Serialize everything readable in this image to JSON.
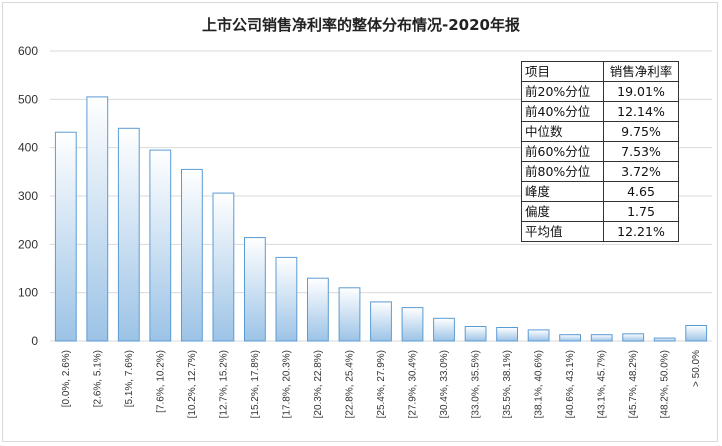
{
  "chart_data": {
    "type": "bar",
    "title": "上市公司销售净利率的整体分布情况-2020年报",
    "xlabel": "",
    "ylabel": "",
    "ylim": [
      0,
      600
    ],
    "yticks": [
      "0",
      "100",
      "200",
      "300",
      "400",
      "500",
      "600"
    ],
    "grid": true,
    "categories": [
      "[0.0%, 2.6%)",
      "[2.6%, 5.1%)",
      "[5.1%, 7.6%)",
      "[7.6%, 10.2%)",
      "[10.2%, 12.7%)",
      "[12.7%, 15.2%)",
      "[15.2%, 17.8%)",
      "[17.8%, 20.3%)",
      "[20.3%, 22.8%)",
      "[22.8%, 25.4%)",
      "[25.4%, 27.9%)",
      "[27.9%, 30.4%)",
      "[30.4%, 33.0%)",
      "[33.0%, 35.5%)",
      "[35.5%, 38.1%)",
      "[38.1%, 40.6%)",
      "[40.6%, 43.1%)",
      "[43.1%, 45.7%)",
      "[45.7%, 48.2%)",
      "[48.2%, 50.0%)",
      "> 50.0%"
    ],
    "values": [
      432,
      505,
      440,
      395,
      355,
      306,
      214,
      173,
      130,
      110,
      81,
      69,
      47,
      30,
      28,
      23,
      13,
      13,
      15,
      6,
      32
    ],
    "colors": {
      "bar_top": "#ffffff",
      "bar_bottom": "#9cc3e6",
      "bar_edge": "#5b9bd5"
    },
    "table": {
      "header": [
        "项目",
        "销售净利率"
      ],
      "rows": [
        [
          "前20%分位",
          "19.01%"
        ],
        [
          "前40%分位",
          "12.14%"
        ],
        [
          "中位数",
          "9.75%"
        ],
        [
          "前60%分位",
          "7.53%"
        ],
        [
          "前80%分位",
          "3.72%"
        ],
        [
          "峰度",
          "4.65"
        ],
        [
          "偏度",
          "1.75"
        ],
        [
          "平均值",
          "12.21%"
        ]
      ]
    }
  }
}
